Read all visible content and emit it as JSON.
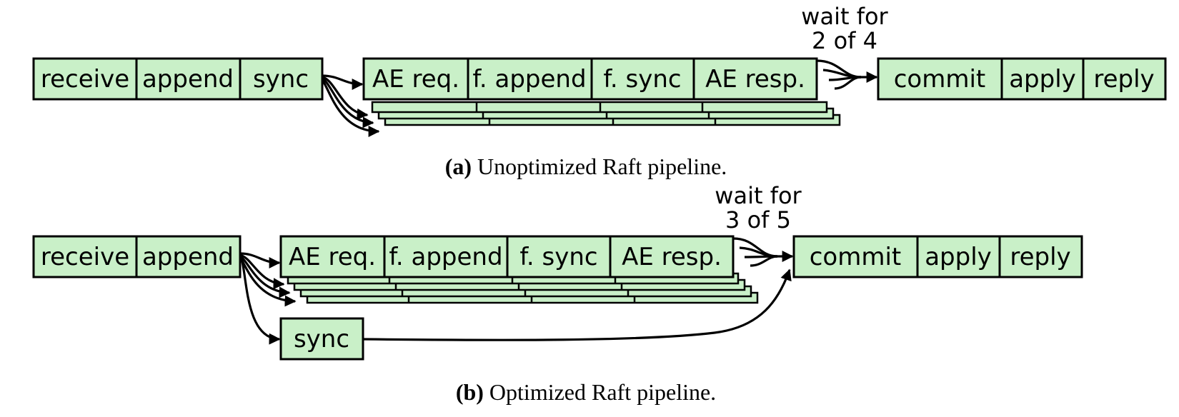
{
  "panel_a": {
    "leader_stages": [
      "receive",
      "append",
      "sync"
    ],
    "follower_stages": [
      "AE req.",
      "f. append",
      "f. sync",
      "AE resp."
    ],
    "final_stages": [
      "commit",
      "apply",
      "reply"
    ],
    "wait_line1": "wait for",
    "wait_line2": "2 of 4",
    "caption_label": "(a)",
    "caption_text": " Unoptimized Raft pipeline."
  },
  "panel_b": {
    "leader_stages": [
      "receive",
      "append"
    ],
    "follower_stages": [
      "AE req.",
      "f. append",
      "f. sync",
      "AE resp."
    ],
    "final_stages": [
      "commit",
      "apply",
      "reply"
    ],
    "sync_stage": "sync",
    "wait_line1": "wait for",
    "wait_line2": "3 of 5",
    "caption_label": "(b)",
    "caption_text": " Optimized Raft pipeline."
  },
  "colors": {
    "stage_fill": "#c9f0c8",
    "stroke": "#000000"
  }
}
